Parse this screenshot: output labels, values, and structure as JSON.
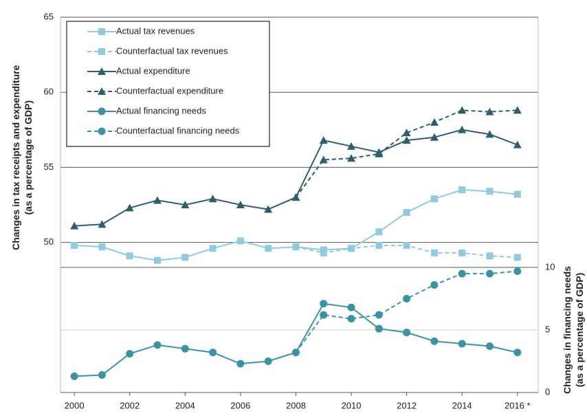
{
  "chart_data": {
    "type": "line",
    "ylabel": [
      "Changes in tax receipts and expenditure",
      "(as a percentage of GDP)"
    ],
    "y2label": [
      "Changes in financing needs",
      "(as a percentage of GDP)"
    ],
    "x": [
      2000,
      2001,
      2002,
      2003,
      2004,
      2005,
      2006,
      2007,
      2008,
      2009,
      2010,
      2011,
      2012,
      2013,
      2014,
      2015,
      2016
    ],
    "xlim": [
      1999.5,
      2016.75
    ],
    "xticks": [
      2000,
      2002,
      2004,
      2006,
      2008,
      2010,
      2012,
      2014,
      {
        "value": 2016,
        "label": "2016 *"
      }
    ],
    "ylim": [
      40,
      65
    ],
    "yticks": [
      50,
      55,
      60,
      65
    ],
    "y2lim": [
      0,
      30
    ],
    "y2ticks": [
      0,
      5,
      10
    ],
    "grid": true,
    "legend": "upper left",
    "series": [
      {
        "name": "Actual tax revenues",
        "color": "#8ecae0",
        "marker": "square",
        "dashed": false,
        "values": [
          49.8,
          49.7,
          49.1,
          48.8,
          49.0,
          49.6,
          50.1,
          49.6,
          49.7,
          49.5,
          49.6,
          50.7,
          52.0,
          52.9,
          53.5,
          53.4,
          53.2
        ]
      },
      {
        "name": "Counterfactual tax revenues",
        "color": "#8ecae0",
        "marker": "square",
        "dashed": true,
        "values": [
          null,
          null,
          null,
          null,
          null,
          null,
          null,
          null,
          49.7,
          49.3,
          49.6,
          49.8,
          49.8,
          49.3,
          49.3,
          49.1,
          49.0
        ]
      },
      {
        "name": "Actual expenditure",
        "color": "#2b5f6e",
        "marker": "triangle",
        "dashed": false,
        "values": [
          51.1,
          51.2,
          52.3,
          52.8,
          52.5,
          52.9,
          52.5,
          52.2,
          53.0,
          56.8,
          56.4,
          56.0,
          56.8,
          57.0,
          57.5,
          57.2,
          56.5
        ]
      },
      {
        "name": "Counterfactual expenditure",
        "color": "#2b5f6e",
        "marker": "triangle",
        "dashed": true,
        "values": [
          null,
          null,
          null,
          null,
          null,
          null,
          null,
          null,
          53.0,
          55.5,
          55.6,
          55.9,
          57.3,
          58.0,
          58.8,
          58.7,
          58.8
        ]
      },
      {
        "name": "Actual financing needs",
        "color": "#3a93a4",
        "marker": "circle",
        "dashed": false,
        "axis": "y2",
        "values": [
          1.3,
          1.4,
          3.1,
          3.8,
          3.5,
          3.2,
          2.3,
          2.5,
          3.2,
          7.1,
          6.8,
          5.1,
          4.8,
          4.1,
          3.9,
          3.7,
          3.2
        ]
      },
      {
        "name": "Counterfactual financing needs",
        "color": "#3a93a4",
        "marker": "circle",
        "dashed": true,
        "axis": "y2",
        "values": [
          null,
          null,
          null,
          null,
          null,
          null,
          null,
          null,
          3.2,
          6.2,
          5.9,
          6.2,
          7.5,
          8.6,
          9.5,
          9.5,
          9.7
        ]
      }
    ]
  }
}
